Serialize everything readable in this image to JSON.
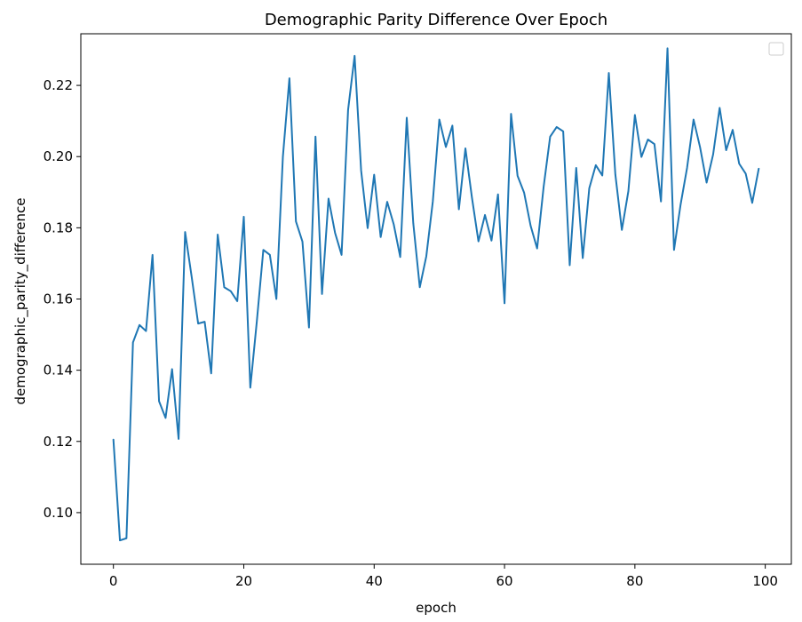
{
  "chart_data": {
    "type": "line",
    "title": "Demographic Parity Difference Over Epoch",
    "xlabel": "epoch",
    "ylabel": "demographic_parity_difference",
    "xlim": [
      -5,
      104
    ],
    "ylim": [
      0.0855,
      0.2345
    ],
    "x_ticks": [
      0,
      20,
      40,
      60,
      80,
      100
    ],
    "y_ticks": [
      0.1,
      0.12,
      0.14,
      0.16,
      0.18,
      0.2,
      0.22
    ],
    "x_tick_labels": [
      "0",
      "20",
      "40",
      "60",
      "80",
      "100"
    ],
    "y_tick_labels": [
      "0.10",
      "0.12",
      "0.14",
      "0.16",
      "0.18",
      "0.20",
      "0.22"
    ],
    "legend": {
      "visible": true,
      "location": "top-right",
      "entries": []
    },
    "grid": false,
    "line_color": "#1f77b4",
    "series": [
      {
        "x": [
          0,
          1,
          2,
          3,
          4,
          5,
          6,
          7,
          8,
          9,
          10,
          11,
          12,
          13,
          14,
          15,
          16,
          17,
          18,
          19,
          20,
          21,
          22,
          23,
          24,
          25,
          26,
          27,
          28,
          29,
          30,
          31,
          32,
          33,
          34,
          35,
          36,
          37,
          38,
          39,
          40,
          41,
          42,
          43,
          44,
          45,
          46,
          47,
          48,
          49,
          50,
          51,
          52,
          53,
          54,
          55,
          56,
          57,
          58,
          59,
          60,
          61,
          62,
          63,
          64,
          65,
          66,
          67,
          68,
          69,
          70,
          71,
          72,
          73,
          74,
          75,
          76,
          77,
          78,
          79,
          80,
          81,
          82,
          83,
          84,
          85,
          86,
          87,
          88,
          89,
          90,
          91,
          92,
          93,
          94,
          95,
          96,
          97,
          98,
          99
        ],
        "values": [
          0.1205,
          0.0922,
          0.0928,
          0.1478,
          0.1527,
          0.151,
          0.1724,
          0.1313,
          0.1266,
          0.1403,
          0.1207,
          0.1788,
          0.1663,
          0.1531,
          0.1536,
          0.1391,
          0.1781,
          0.1633,
          0.1622,
          0.1594,
          0.1831,
          0.1351,
          0.1537,
          0.1738,
          0.1724,
          0.16,
          0.2,
          0.222,
          0.1818,
          0.1761,
          0.152,
          0.2056,
          0.1614,
          0.1882,
          0.1786,
          0.1724,
          0.2131,
          0.2283,
          0.1961,
          0.1799,
          0.1949,
          0.1774,
          0.1873,
          0.181,
          0.1718,
          0.2109,
          0.1813,
          0.1633,
          0.172,
          0.1874,
          0.2104,
          0.2027,
          0.2087,
          0.1852,
          0.2023,
          0.1885,
          0.1762,
          0.1836,
          0.1764,
          0.1894,
          0.1588,
          0.212,
          0.1946,
          0.1899,
          0.1806,
          0.1742,
          0.1915,
          0.2056,
          0.2083,
          0.2071,
          0.1695,
          0.1968,
          0.1715,
          0.1911,
          0.1976,
          0.1947,
          0.2235,
          0.195,
          0.1794,
          0.1903,
          0.2117,
          0.1999,
          0.2048,
          0.2035,
          0.1874,
          0.2304,
          0.1738,
          0.1864,
          0.1968,
          0.2104,
          0.2026,
          0.1927,
          0.2006,
          0.2137,
          0.2018,
          0.2075,
          0.198,
          0.1952,
          0.187,
          0.1966
        ]
      }
    ]
  }
}
